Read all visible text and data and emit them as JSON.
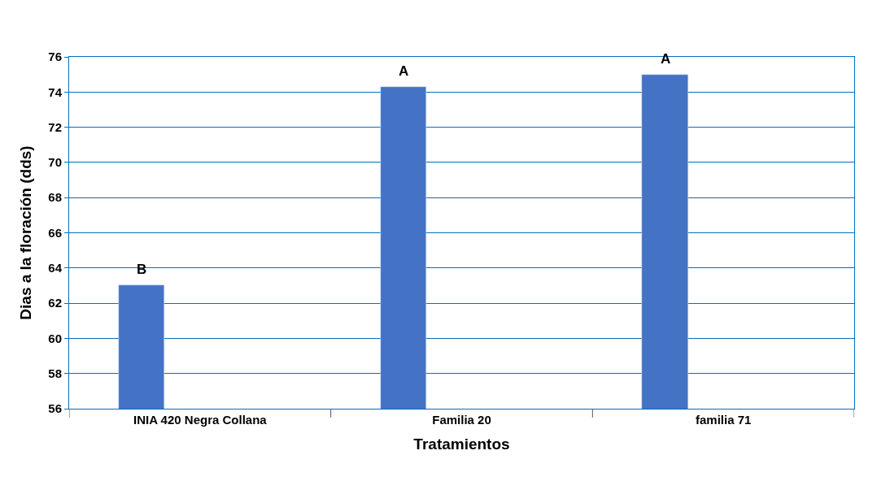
{
  "chart_data": {
    "type": "bar",
    "xlabel": "Tratamientos",
    "ylabel": "Dias a la floración (dds)",
    "categories": [
      "INIA 420 Negra Collana",
      "Familia 20",
      "familia 71"
    ],
    "values": [
      63,
      74.3,
      75
    ],
    "color": "#4472c4",
    "ylim": [
      56,
      76
    ],
    "yticks": [
      56,
      58,
      60,
      62,
      64,
      66,
      68,
      70,
      72,
      74,
      76
    ],
    "grid": "y",
    "annotations": [
      "B",
      "A",
      "A"
    ]
  }
}
